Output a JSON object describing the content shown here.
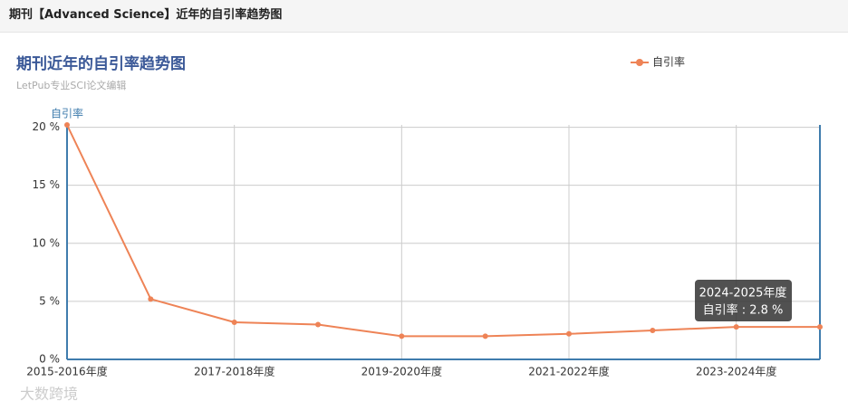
{
  "header": {
    "title": "期刊【Advanced Science】近年的自引率趋势图"
  },
  "chart_data": {
    "type": "line",
    "title": "期刊近年的自引率趋势图",
    "subtitle": "LetPub专业SCI论文编辑",
    "y_axis_name": "自引率",
    "categories": [
      "2015-2016年度",
      null,
      "2017-2018年度",
      null,
      "2019-2020年度",
      null,
      "2021-2022年度",
      null,
      "2023-2024年度",
      null
    ],
    "series": [
      {
        "name": "自引率",
        "color": "#ee8356",
        "values": [
          20.2,
          5.2,
          3.2,
          3.0,
          2.0,
          2.0,
          2.2,
          2.5,
          2.8,
          2.8
        ]
      }
    ],
    "ylim": [
      0,
      20.2
    ],
    "yticks": [
      {
        "value": 0,
        "label": "0 %"
      },
      {
        "value": 5,
        "label": "5 %"
      },
      {
        "value": 10,
        "label": "10 %"
      },
      {
        "value": 15,
        "label": "15 %"
      },
      {
        "value": 20,
        "label": "20 %"
      }
    ],
    "grid": true,
    "legend": "top-right",
    "tooltip": {
      "title": "2024-2025年度",
      "text": "自引率 : 2.8 %"
    }
  },
  "watermark": "大数跨境"
}
